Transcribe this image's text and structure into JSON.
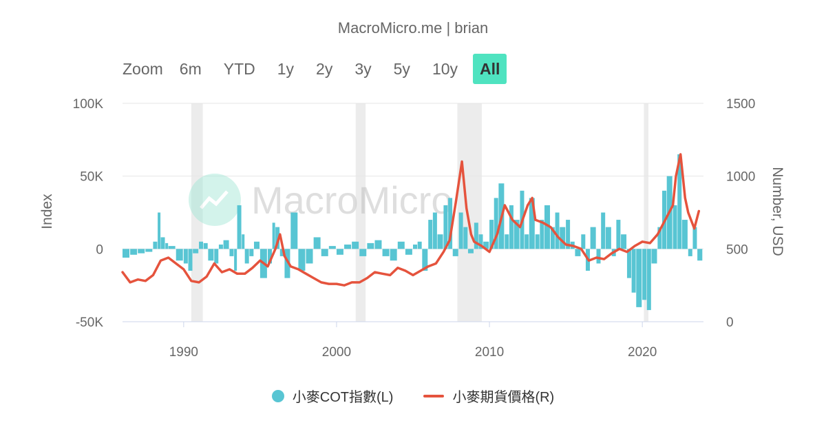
{
  "header": {
    "credit": "MacroMicro.me | brian"
  },
  "range_selector": {
    "zoom_label": "Zoom",
    "buttons": [
      "6m",
      "YTD",
      "1y",
      "2y",
      "3y",
      "5y",
      "10y",
      "All"
    ],
    "active": "All"
  },
  "watermark": {
    "text": "MacroMicro"
  },
  "colors": {
    "cot": "#58c5d3",
    "price": "#e5533d",
    "recession": "#ececec",
    "grid": "#e6e6e6",
    "active_button": "#4fe3c0"
  },
  "chart_data": {
    "type": "bar+line",
    "x_ticks": [
      "1990",
      "2000",
      "2010",
      "2020"
    ],
    "xlim": [
      1986,
      2024
    ],
    "left_axis": {
      "title": "Index",
      "ylim": [
        -50000,
        100000
      ],
      "ticks": [
        "100K",
        "50K",
        "0",
        "-50K"
      ],
      "tick_values": [
        100000,
        50000,
        0,
        -50000
      ]
    },
    "right_axis": {
      "title": "Number, USD",
      "ylim": [
        0,
        1500
      ],
      "ticks": [
        "1500",
        "1000",
        "500",
        "0"
      ],
      "tick_values": [
        1500,
        1000,
        500,
        0
      ]
    },
    "recessions": [
      [
        1990.5,
        1991.25
      ],
      [
        2001.25,
        2001.9
      ],
      [
        2007.9,
        2009.5
      ],
      [
        2020.1,
        2020.4
      ]
    ],
    "grid": true,
    "legend_position": "bottom-center",
    "series": [
      {
        "name": "小麥COT指數(L)",
        "type": "bar",
        "axis": "left",
        "x": [
          1986.0,
          1986.5,
          1987.0,
          1987.5,
          1988.0,
          1988.3,
          1988.5,
          1988.8,
          1989.0,
          1989.5,
          1990.0,
          1990.3,
          1990.6,
          1991.0,
          1991.3,
          1991.6,
          1992.0,
          1992.3,
          1992.6,
          1993.0,
          1993.3,
          1993.5,
          1993.8,
          1994.0,
          1994.3,
          1994.6,
          1995.0,
          1995.5,
          1995.8,
          1996.0,
          1996.3,
          1996.6,
          1997.0,
          1997.5,
          1998.0,
          1998.5,
          1999.0,
          1999.5,
          2000.0,
          2000.5,
          2001.0,
          2001.5,
          2002.0,
          2002.5,
          2003.0,
          2003.5,
          2004.0,
          2004.5,
          2005.0,
          2005.3,
          2005.6,
          2006.0,
          2006.3,
          2006.6,
          2007.0,
          2007.3,
          2007.6,
          2008.0,
          2008.3,
          2008.6,
          2009.0,
          2009.3,
          2009.6,
          2010.0,
          2010.3,
          2010.6,
          2011.0,
          2011.3,
          2011.6,
          2012.0,
          2012.3,
          2012.6,
          2013.0,
          2013.3,
          2013.6,
          2014.0,
          2014.3,
          2014.6,
          2015.0,
          2015.3,
          2015.6,
          2016.0,
          2016.3,
          2016.6,
          2017.0,
          2017.3,
          2017.6,
          2018.0,
          2018.3,
          2018.6,
          2019.0,
          2019.3,
          2019.6,
          2020.0,
          2020.3,
          2020.6,
          2021.0,
          2021.3,
          2021.6,
          2022.0,
          2022.3,
          2022.6,
          2023.0,
          2023.3,
          2023.6
        ],
        "values": [
          -6000,
          -4000,
          -3000,
          -2000,
          5000,
          25000,
          8000,
          4000,
          2000,
          -8000,
          -10000,
          -15000,
          -3000,
          5000,
          4000,
          -8000,
          -10000,
          3000,
          6000,
          -5000,
          -15000,
          30000,
          10000,
          -10000,
          -5000,
          5000,
          -20000,
          -10000,
          18000,
          15000,
          -5000,
          -20000,
          25000,
          -15000,
          -10000,
          8000,
          -5000,
          2000,
          -4000,
          3000,
          5000,
          -5000,
          4000,
          6000,
          -5000,
          -8000,
          5000,
          -4000,
          3000,
          5000,
          -15000,
          20000,
          25000,
          10000,
          30000,
          35000,
          -5000,
          25000,
          15000,
          -3000,
          18000,
          10000,
          5000,
          20000,
          35000,
          45000,
          10000,
          30000,
          20000,
          40000,
          10000,
          35000,
          10000,
          20000,
          30000,
          15000,
          25000,
          15000,
          20000,
          5000,
          -5000,
          10000,
          -15000,
          15000,
          -10000,
          25000,
          15000,
          -5000,
          20000,
          10000,
          -20000,
          -30000,
          -40000,
          -35000,
          -42000,
          -10000,
          15000,
          40000,
          50000,
          30000,
          65000,
          20000,
          -5000,
          15000,
          -8000
        ]
      },
      {
        "name": "小麥期貨價格(R)",
        "type": "line",
        "axis": "right",
        "x": [
          1986.0,
          1986.5,
          1987.0,
          1987.5,
          1988.0,
          1988.5,
          1989.0,
          1989.5,
          1990.0,
          1990.5,
          1991.0,
          1991.5,
          1992.0,
          1992.5,
          1993.0,
          1993.5,
          1994.0,
          1994.5,
          1995.0,
          1995.5,
          1996.0,
          1996.3,
          1996.6,
          1997.0,
          1997.5,
          1998.0,
          1998.5,
          1999.0,
          1999.5,
          2000.0,
          2000.5,
          2001.0,
          2001.5,
          2002.0,
          2002.5,
          2003.0,
          2003.5,
          2004.0,
          2004.5,
          2005.0,
          2005.5,
          2006.0,
          2006.5,
          2007.0,
          2007.4,
          2007.8,
          2008.2,
          2008.5,
          2008.8,
          2009.0,
          2009.5,
          2010.0,
          2010.5,
          2010.8,
          2011.0,
          2011.5,
          2012.0,
          2012.5,
          2012.8,
          2013.0,
          2013.5,
          2014.0,
          2014.5,
          2015.0,
          2015.5,
          2016.0,
          2016.5,
          2017.0,
          2017.5,
          2018.0,
          2018.5,
          2019.0,
          2019.5,
          2020.0,
          2020.5,
          2021.0,
          2021.5,
          2022.0,
          2022.2,
          2022.5,
          2022.8,
          2023.0,
          2023.4,
          2023.7
        ],
        "values": [
          340,
          270,
          290,
          280,
          320,
          420,
          440,
          400,
          360,
          280,
          270,
          310,
          400,
          340,
          360,
          330,
          330,
          370,
          420,
          380,
          500,
          600,
          450,
          380,
          360,
          330,
          300,
          270,
          260,
          260,
          250,
          270,
          270,
          300,
          340,
          330,
          320,
          370,
          350,
          320,
          350,
          380,
          400,
          480,
          560,
          820,
          1100,
          780,
          600,
          550,
          520,
          480,
          600,
          720,
          800,
          700,
          650,
          800,
          850,
          700,
          680,
          650,
          580,
          530,
          520,
          500,
          420,
          440,
          430,
          470,
          500,
          480,
          520,
          550,
          540,
          600,
          700,
          800,
          1000,
          1150,
          850,
          750,
          640,
          760
        ]
      }
    ]
  }
}
